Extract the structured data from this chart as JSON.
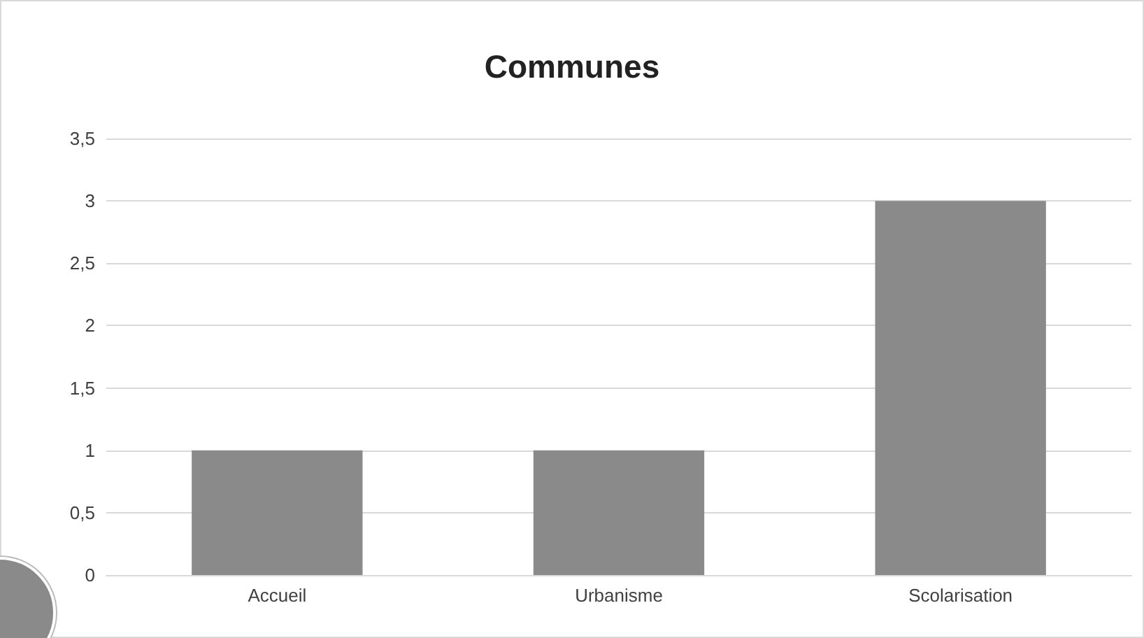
{
  "chart_data": {
    "type": "bar",
    "title": "Communes",
    "categories": [
      "Accueil",
      "Urbanisme",
      "Scolarisation"
    ],
    "values": [
      1,
      1,
      3
    ],
    "color": "#8a8a8a",
    "ylim": [
      0,
      3.5
    ],
    "yticks": [
      0,
      {
        "value": 0.5,
        "label": "0,5"
      },
      1,
      {
        "value": 1.5,
        "label": "1,5"
      },
      2,
      {
        "value": 2.5,
        "label": "2,5"
      },
      3,
      {
        "value": 3.5,
        "label": "3,5"
      }
    ],
    "grid": "y"
  }
}
